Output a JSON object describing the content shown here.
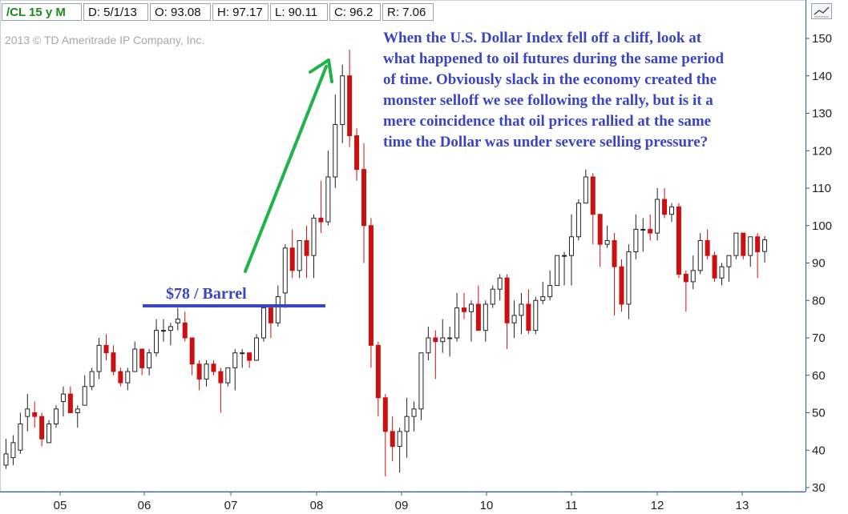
{
  "header": {
    "symbol": "/CL 15 y M",
    "date": "D: 5/1/13",
    "open": "O: 93.08",
    "high": "H: 97.17",
    "low": "L: 90.11",
    "close": "C: 96.2",
    "range": "R: 7.06"
  },
  "copyright": "2013 © TD Ameritrade IP Company, Inc.",
  "annotation": {
    "lines": [
      "When the U.S. Dollar Index fell off a cliff, look at",
      "what happened to oil futures during the same period",
      "of time. Obviously slack in the economy created the",
      "monster selloff we see following the rally, but is it a",
      "mere coincidence that oil prices rallied at the same",
      "time the Dollar was under severe selling pressure?"
    ]
  },
  "barrel_label": "$78 / Barrel",
  "colors": {
    "up_candle": "#ffffff",
    "down_candle": "#cc1010",
    "annotation_text": "#3b45c4",
    "arrow": "#1fb34a",
    "axis": "#1b5fa8"
  },
  "chart_data": {
    "type": "candlestick",
    "interval": "monthly",
    "xlabel": "",
    "ylabel": "",
    "y_axis_position": "right",
    "y_ticks": [
      30,
      40,
      50,
      60,
      70,
      80,
      90,
      100,
      110,
      120,
      130,
      140,
      150
    ],
    "ylim": [
      30,
      152
    ],
    "x_ticks": [
      "05",
      "06",
      "07",
      "08",
      "09",
      "10",
      "11",
      "12",
      "13"
    ],
    "grid": false,
    "horizontal_line": {
      "label": "$78 / Barrel",
      "value": 78.5
    },
    "candles": [
      {
        "date": "2004-07",
        "o": 36,
        "h": 43,
        "l": 35,
        "c": 39
      },
      {
        "date": "2004-08",
        "o": 38,
        "h": 44,
        "l": 36,
        "c": 42
      },
      {
        "date": "2004-09",
        "o": 40,
        "h": 50,
        "l": 39,
        "c": 47
      },
      {
        "date": "2004-10",
        "o": 49,
        "h": 55,
        "l": 45,
        "c": 51
      },
      {
        "date": "2004-11",
        "o": 50,
        "h": 53,
        "l": 46,
        "c": 49
      },
      {
        "date": "2004-12",
        "o": 49,
        "h": 50,
        "l": 41,
        "c": 43
      },
      {
        "date": "2005-01",
        "o": 42,
        "h": 48,
        "l": 42,
        "c": 47
      },
      {
        "date": "2005-02",
        "o": 47,
        "h": 52,
        "l": 46,
        "c": 51
      },
      {
        "date": "2005-03",
        "o": 53,
        "h": 57,
        "l": 49,
        "c": 55
      },
      {
        "date": "2005-04",
        "o": 55,
        "h": 57,
        "l": 50,
        "c": 50
      },
      {
        "date": "2005-05",
        "o": 50,
        "h": 52,
        "l": 46,
        "c": 51
      },
      {
        "date": "2005-06",
        "o": 52,
        "h": 60,
        "l": 52,
        "c": 57
      },
      {
        "date": "2005-07",
        "o": 57,
        "h": 62,
        "l": 56,
        "c": 61
      },
      {
        "date": "2005-08",
        "o": 61,
        "h": 70,
        "l": 59,
        "c": 68
      },
      {
        "date": "2005-09",
        "o": 68,
        "h": 71,
        "l": 64,
        "c": 66
      },
      {
        "date": "2005-10",
        "o": 66,
        "h": 68,
        "l": 60,
        "c": 61
      },
      {
        "date": "2005-11",
        "o": 61,
        "h": 62,
        "l": 57,
        "c": 58
      },
      {
        "date": "2005-12",
        "o": 58,
        "h": 62,
        "l": 56,
        "c": 61
      },
      {
        "date": "2006-01",
        "o": 61,
        "h": 69,
        "l": 61,
        "c": 67
      },
      {
        "date": "2006-02",
        "o": 67,
        "h": 67,
        "l": 60,
        "c": 62
      },
      {
        "date": "2006-03",
        "o": 62,
        "h": 67,
        "l": 60,
        "c": 66
      },
      {
        "date": "2006-04",
        "o": 66,
        "h": 75,
        "l": 65,
        "c": 72
      },
      {
        "date": "2006-05",
        "o": 72,
        "h": 75,
        "l": 69,
        "c": 72
      },
      {
        "date": "2006-06",
        "o": 72,
        "h": 74,
        "l": 68,
        "c": 73
      },
      {
        "date": "2006-07",
        "o": 74,
        "h": 78,
        "l": 72,
        "c": 75
      },
      {
        "date": "2006-08",
        "o": 74,
        "h": 77,
        "l": 69,
        "c": 70
      },
      {
        "date": "2006-09",
        "o": 70,
        "h": 70,
        "l": 60,
        "c": 63
      },
      {
        "date": "2006-10",
        "o": 63,
        "h": 64,
        "l": 56,
        "c": 59
      },
      {
        "date": "2006-11",
        "o": 59,
        "h": 64,
        "l": 57,
        "c": 63
      },
      {
        "date": "2006-12",
        "o": 63,
        "h": 64,
        "l": 60,
        "c": 61
      },
      {
        "date": "2007-01",
        "o": 61,
        "h": 62,
        "l": 50,
        "c": 58
      },
      {
        "date": "2007-02",
        "o": 58,
        "h": 62,
        "l": 57,
        "c": 62
      },
      {
        "date": "2007-03",
        "o": 62,
        "h": 67,
        "l": 56,
        "c": 66
      },
      {
        "date": "2007-04",
        "o": 66,
        "h": 67,
        "l": 62,
        "c": 66
      },
      {
        "date": "2007-05",
        "o": 66,
        "h": 66,
        "l": 62,
        "c": 64
      },
      {
        "date": "2007-06",
        "o": 64,
        "h": 71,
        "l": 64,
        "c": 70
      },
      {
        "date": "2007-07",
        "o": 70,
        "h": 78,
        "l": 69,
        "c": 78
      },
      {
        "date": "2007-08",
        "o": 78,
        "h": 78,
        "l": 70,
        "c": 74
      },
      {
        "date": "2007-09",
        "o": 74,
        "h": 84,
        "l": 73,
        "c": 81
      },
      {
        "date": "2007-10",
        "o": 82,
        "h": 95,
        "l": 78,
        "c": 94
      },
      {
        "date": "2007-11",
        "o": 94,
        "h": 99,
        "l": 86,
        "c": 88
      },
      {
        "date": "2007-12",
        "o": 88,
        "h": 96,
        "l": 86,
        "c": 96
      },
      {
        "date": "2008-01",
        "o": 96,
        "h": 100,
        "l": 86,
        "c": 92
      },
      {
        "date": "2008-02",
        "o": 92,
        "h": 103,
        "l": 86,
        "c": 102
      },
      {
        "date": "2008-03",
        "o": 102,
        "h": 112,
        "l": 98,
        "c": 101
      },
      {
        "date": "2008-04",
        "o": 101,
        "h": 120,
        "l": 100,
        "c": 113
      },
      {
        "date": "2008-05",
        "o": 113,
        "h": 135,
        "l": 110,
        "c": 127
      },
      {
        "date": "2008-06",
        "o": 127,
        "h": 143,
        "l": 122,
        "c": 140
      },
      {
        "date": "2008-07",
        "o": 140,
        "h": 147,
        "l": 121,
        "c": 124
      },
      {
        "date": "2008-08",
        "o": 124,
        "h": 126,
        "l": 112,
        "c": 115
      },
      {
        "date": "2008-09",
        "o": 115,
        "h": 122,
        "l": 90,
        "c": 100
      },
      {
        "date": "2008-10",
        "o": 100,
        "h": 102,
        "l": 62,
        "c": 68
      },
      {
        "date": "2008-11",
        "o": 68,
        "h": 69,
        "l": 49,
        "c": 54
      },
      {
        "date": "2008-12",
        "o": 54,
        "h": 55,
        "l": 33,
        "c": 45
      },
      {
        "date": "2009-01",
        "o": 45,
        "h": 49,
        "l": 37,
        "c": 41
      },
      {
        "date": "2009-02",
        "o": 41,
        "h": 46,
        "l": 34,
        "c": 45
      },
      {
        "date": "2009-03",
        "o": 45,
        "h": 54,
        "l": 38,
        "c": 49
      },
      {
        "date": "2009-04",
        "o": 49,
        "h": 53,
        "l": 45,
        "c": 51
      },
      {
        "date": "2009-05",
        "o": 51,
        "h": 66,
        "l": 48,
        "c": 66
      },
      {
        "date": "2009-06",
        "o": 66,
        "h": 73,
        "l": 64,
        "c": 70
      },
      {
        "date": "2009-07",
        "o": 70,
        "h": 72,
        "l": 59,
        "c": 69
      },
      {
        "date": "2009-08",
        "o": 69,
        "h": 75,
        "l": 66,
        "c": 70
      },
      {
        "date": "2009-09",
        "o": 70,
        "h": 73,
        "l": 65,
        "c": 70
      },
      {
        "date": "2009-10",
        "o": 70,
        "h": 82,
        "l": 69,
        "c": 78
      },
      {
        "date": "2009-11",
        "o": 78,
        "h": 82,
        "l": 75,
        "c": 77
      },
      {
        "date": "2009-12",
        "o": 77,
        "h": 80,
        "l": 69,
        "c": 79
      },
      {
        "date": "2010-01",
        "o": 79,
        "h": 84,
        "l": 72,
        "c": 72
      },
      {
        "date": "2010-02",
        "o": 72,
        "h": 80,
        "l": 69,
        "c": 79
      },
      {
        "date": "2010-03",
        "o": 79,
        "h": 84,
        "l": 78,
        "c": 83
      },
      {
        "date": "2010-04",
        "o": 83,
        "h": 87,
        "l": 80,
        "c": 86
      },
      {
        "date": "2010-05",
        "o": 86,
        "h": 87,
        "l": 67,
        "c": 74
      },
      {
        "date": "2010-06",
        "o": 74,
        "h": 80,
        "l": 70,
        "c": 76
      },
      {
        "date": "2010-07",
        "o": 76,
        "h": 82,
        "l": 71,
        "c": 79
      },
      {
        "date": "2010-08",
        "o": 79,
        "h": 83,
        "l": 71,
        "c": 72
      },
      {
        "date": "2010-09",
        "o": 72,
        "h": 81,
        "l": 71,
        "c": 80
      },
      {
        "date": "2010-10",
        "o": 80,
        "h": 85,
        "l": 79,
        "c": 81
      },
      {
        "date": "2010-11",
        "o": 81,
        "h": 88,
        "l": 80,
        "c": 84
      },
      {
        "date": "2010-12",
        "o": 84,
        "h": 92,
        "l": 84,
        "c": 92
      },
      {
        "date": "2011-01",
        "o": 92,
        "h": 93,
        "l": 84,
        "c": 92
      },
      {
        "date": "2011-02",
        "o": 92,
        "h": 103,
        "l": 84,
        "c": 97
      },
      {
        "date": "2011-03",
        "o": 97,
        "h": 107,
        "l": 96,
        "c": 106
      },
      {
        "date": "2011-04",
        "o": 106,
        "h": 115,
        "l": 106,
        "c": 113
      },
      {
        "date": "2011-05",
        "o": 113,
        "h": 114,
        "l": 95,
        "c": 103
      },
      {
        "date": "2011-06",
        "o": 103,
        "h": 103,
        "l": 89,
        "c": 95
      },
      {
        "date": "2011-07",
        "o": 95,
        "h": 100,
        "l": 94,
        "c": 96
      },
      {
        "date": "2011-08",
        "o": 96,
        "h": 98,
        "l": 76,
        "c": 89
      },
      {
        "date": "2011-09",
        "o": 89,
        "h": 91,
        "l": 77,
        "c": 79
      },
      {
        "date": "2011-10",
        "o": 79,
        "h": 95,
        "l": 75,
        "c": 93
      },
      {
        "date": "2011-11",
        "o": 93,
        "h": 103,
        "l": 91,
        "c": 99
      },
      {
        "date": "2011-12",
        "o": 99,
        "h": 102,
        "l": 93,
        "c": 99
      },
      {
        "date": "2012-01",
        "o": 99,
        "h": 103,
        "l": 96,
        "c": 98
      },
      {
        "date": "2012-02",
        "o": 98,
        "h": 110,
        "l": 96,
        "c": 107
      },
      {
        "date": "2012-03",
        "o": 107,
        "h": 110,
        "l": 102,
        "c": 103
      },
      {
        "date": "2012-04",
        "o": 103,
        "h": 106,
        "l": 101,
        "c": 105
      },
      {
        "date": "2012-05",
        "o": 105,
        "h": 106,
        "l": 86,
        "c": 87
      },
      {
        "date": "2012-06",
        "o": 87,
        "h": 88,
        "l": 77,
        "c": 85
      },
      {
        "date": "2012-07",
        "o": 85,
        "h": 92,
        "l": 83,
        "c": 88
      },
      {
        "date": "2012-08",
        "o": 88,
        "h": 98,
        "l": 87,
        "c": 96
      },
      {
        "date": "2012-09",
        "o": 96,
        "h": 99,
        "l": 91,
        "c": 92
      },
      {
        "date": "2012-10",
        "o": 92,
        "h": 93,
        "l": 85,
        "c": 86
      },
      {
        "date": "2012-11",
        "o": 86,
        "h": 90,
        "l": 84,
        "c": 89
      },
      {
        "date": "2012-12",
        "o": 89,
        "h": 92,
        "l": 85,
        "c": 92
      },
      {
        "date": "2013-01",
        "o": 92,
        "h": 98,
        "l": 91,
        "c": 98
      },
      {
        "date": "2013-02",
        "o": 98,
        "h": 98,
        "l": 91,
        "c": 92
      },
      {
        "date": "2013-03",
        "o": 92,
        "h": 97,
        "l": 89,
        "c": 97
      },
      {
        "date": "2013-04",
        "o": 97,
        "h": 98,
        "l": 86,
        "c": 93
      },
      {
        "date": "2013-05",
        "o": 93.08,
        "h": 97.17,
        "l": 90.11,
        "c": 96.2
      }
    ]
  }
}
